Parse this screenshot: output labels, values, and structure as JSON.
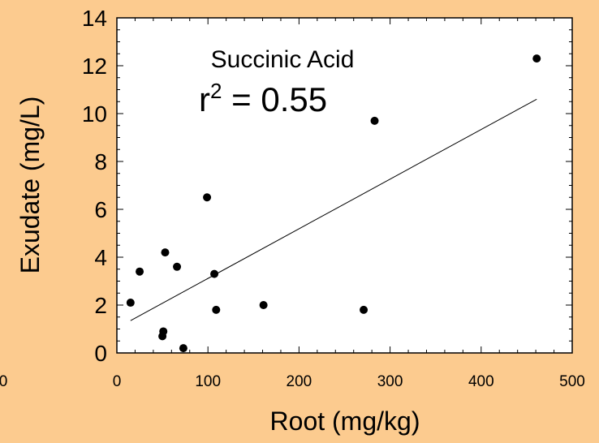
{
  "chart_data": {
    "type": "scatter",
    "xlabel": "Root (mg/kg)",
    "ylabel": "Exudate (mg/L)",
    "xlim": [
      0,
      500
    ],
    "ylim": [
      0,
      14
    ],
    "x_ticks": [
      0,
      100,
      200,
      300,
      400,
      500
    ],
    "y_ticks": [
      0,
      2,
      4,
      6,
      8,
      10,
      12,
      14
    ],
    "x_tick_labels": [
      "0",
      "100",
      "200",
      "300",
      "400",
      "500"
    ],
    "y_tick_labels": [
      "0",
      "2",
      "4",
      "6",
      "8",
      "10",
      "12",
      "14"
    ],
    "outer_tick_label": "0",
    "grid": false,
    "annotation_title": "Succinic Acid",
    "annotation_r_prefix": "r",
    "annotation_r_exp": "2",
    "annotation_r_value": " = 0.55",
    "series": [
      {
        "points": [
          [
            15,
            2.1
          ],
          [
            25,
            3.4
          ],
          [
            50,
            0.7
          ],
          [
            51,
            0.9
          ],
          [
            53,
            4.2
          ],
          [
            66,
            3.6
          ],
          [
            73,
            0.2
          ],
          [
            99,
            6.5
          ],
          [
            107,
            3.3
          ],
          [
            109,
            1.8
          ],
          [
            161,
            2.0
          ],
          [
            271,
            1.8
          ],
          [
            283,
            9.7
          ],
          [
            461,
            12.3
          ]
        ]
      }
    ],
    "fit_line": {
      "x": [
        15,
        461
      ],
      "y": [
        1.35,
        10.6
      ]
    }
  },
  "colors": {
    "background": "#FCCB8F",
    "plot_area": "#FFFFFF",
    "ink": "#000000"
  }
}
